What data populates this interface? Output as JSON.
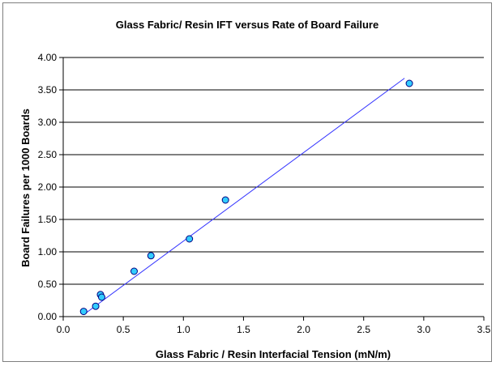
{
  "chart_data": {
    "type": "scatter",
    "title": "Glass Fabric/ Resin IFT versus Rate of Board Failure",
    "xlabel": "Glass Fabric / Resin Interfacial Tension (mN/m)",
    "ylabel": "Board Failures per 1000 Boards",
    "xlim": [
      0.0,
      3.5
    ],
    "ylim": [
      0.0,
      4.0
    ],
    "x_ticks": [
      "0.0",
      "0.5",
      "1.0",
      "1.5",
      "2.0",
      "2.5",
      "3.0",
      "3.5"
    ],
    "y_ticks": [
      "0.00",
      "0.50",
      "1.00",
      "1.50",
      "2.00",
      "2.50",
      "3.00",
      "3.50",
      "4.00"
    ],
    "grid": "horizontal",
    "legend": "none",
    "series": [
      {
        "points": [
          {
            "x": 0.17,
            "y": 0.08
          },
          {
            "x": 0.27,
            "y": 0.16
          },
          {
            "x": 0.31,
            "y": 0.34
          },
          {
            "x": 0.32,
            "y": 0.3
          },
          {
            "x": 0.59,
            "y": 0.7
          },
          {
            "x": 0.73,
            "y": 0.94
          },
          {
            "x": 1.05,
            "y": 1.2
          },
          {
            "x": 1.35,
            "y": 1.8
          },
          {
            "x": 2.88,
            "y": 3.6
          }
        ],
        "marker_color": "#33ccff",
        "marker_edge": "#000080"
      }
    ],
    "trendline": {
      "type": "linear",
      "color": "#3333ff",
      "from": {
        "x": 0.17,
        "y": 0.03
      },
      "to": {
        "x": 2.84,
        "y": 3.68
      }
    }
  }
}
